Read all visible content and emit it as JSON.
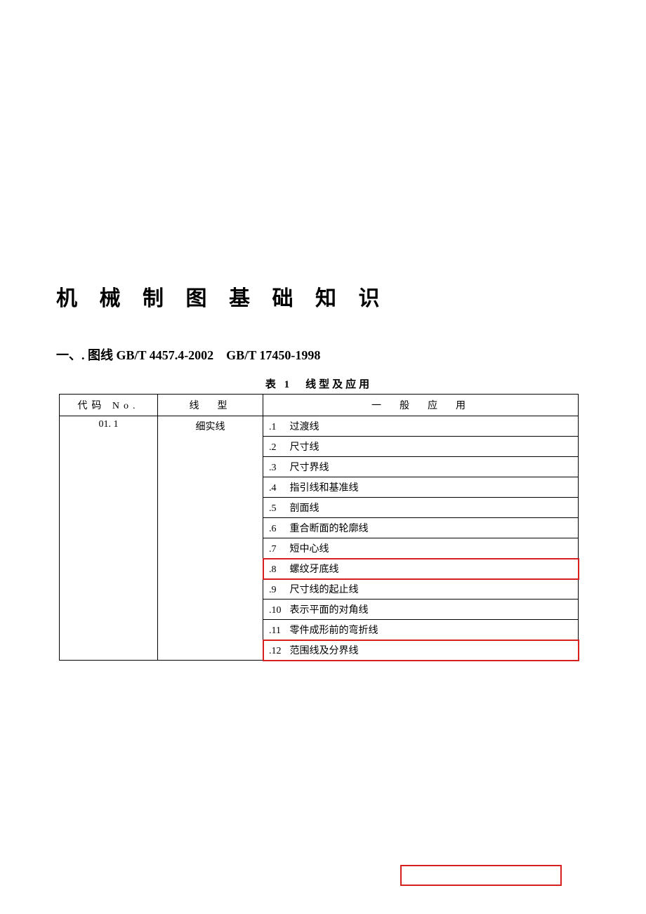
{
  "title": "机 械 制 图 基 础 知 识",
  "section": {
    "prefix": "一、. 图线",
    "standards": "GB/T 4457.4-2002　GB/T 17450-1998"
  },
  "table": {
    "caption": "表 1　线型及应用",
    "columns": [
      "代码 No.",
      "线　型",
      "一　般　应　用"
    ],
    "code": "01. 1",
    "lineType": "细实线",
    "applications": [
      {
        "idx": ".1",
        "label": "过渡线"
      },
      {
        "idx": ".2",
        "label": "尺寸线"
      },
      {
        "idx": ".3",
        "label": "尺寸界线"
      },
      {
        "idx": ".4",
        "label": "指引线和基准线"
      },
      {
        "idx": ".5",
        "label": "剖面线"
      },
      {
        "idx": ".6",
        "label": "重合断面的轮廓线"
      },
      {
        "idx": ".7",
        "label": "短中心线"
      },
      {
        "idx": ".8",
        "label": "螺纹牙底线"
      },
      {
        "idx": ".9",
        "label": "尺寸线的起止线"
      },
      {
        "idx": ".10",
        "label": "表示平面的对角线"
      },
      {
        "idx": ".11",
        "label": "零件成形前的弯折线"
      },
      {
        "idx": ".12",
        "label": "范围线及分界线"
      }
    ],
    "highlight_rows": [
      7,
      11
    ],
    "colors": {
      "border": "#000000",
      "highlight": "#d61f1f",
      "background": "#ffffff"
    },
    "font_size": 14
  }
}
